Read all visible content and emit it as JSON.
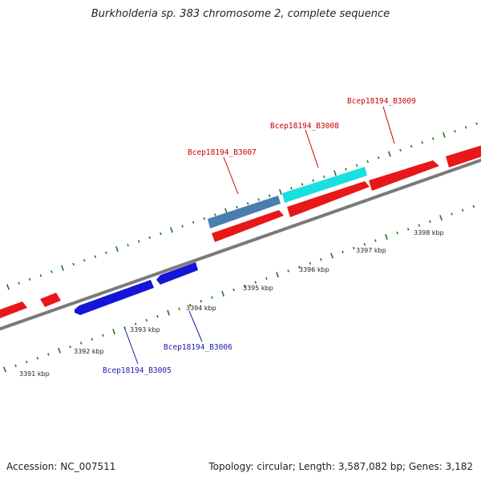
{
  "title": "Burkholderia sp. 383 chromosome 2, complete sequence",
  "footer": {
    "accession": "Accession: NC_007511",
    "summary": "Topology: circular; Length: 3,587,082 bp; Genes: 3,182"
  },
  "colors": {
    "backbone": "#7a7a7a",
    "tick": "#1a7a1a",
    "forward_gene": "#e81818",
    "reverse_gene": "#1515d8",
    "highlight_gene_a": "#4a7eb0",
    "highlight_gene_b": "#19e0e0",
    "forward_label": "#cc0000",
    "reverse_label": "#1a1aaa"
  },
  "scale": {
    "unit": "kbp",
    "labels": [
      {
        "kbp": 3391,
        "text": "3391 kbp"
      },
      {
        "kbp": 3392,
        "text": "3392 kbp"
      },
      {
        "kbp": 3393,
        "text": "3393 kbp"
      },
      {
        "kbp": 3394,
        "text": "3394 kbp"
      },
      {
        "kbp": 3395,
        "text": "3395 kbp"
      },
      {
        "kbp": 3396,
        "text": "3396 kbp"
      },
      {
        "kbp": 3397,
        "text": "3397 kbp"
      },
      {
        "kbp": 3398,
        "text": "3398 kbp"
      }
    ]
  },
  "genes": [
    {
      "id": "Bcep18194_B3005",
      "label": "Bcep18194_B3005",
      "strand": "reverse",
      "color": "reverse_gene"
    },
    {
      "id": "Bcep18194_B3006",
      "label": "Bcep18194_B3006",
      "strand": "reverse",
      "color": "reverse_gene"
    },
    {
      "id": "Bcep18194_B3007",
      "label": "Bcep18194_B3007",
      "strand": "forward",
      "color": "highlight_gene_a"
    },
    {
      "id": "Bcep18194_B3008",
      "label": "Bcep18194_B3008",
      "strand": "forward",
      "color": "highlight_gene_b"
    },
    {
      "id": "Bcep18194_B3009",
      "label": "Bcep18194_B3009",
      "strand": "forward",
      "color": "forward_gene"
    }
  ]
}
